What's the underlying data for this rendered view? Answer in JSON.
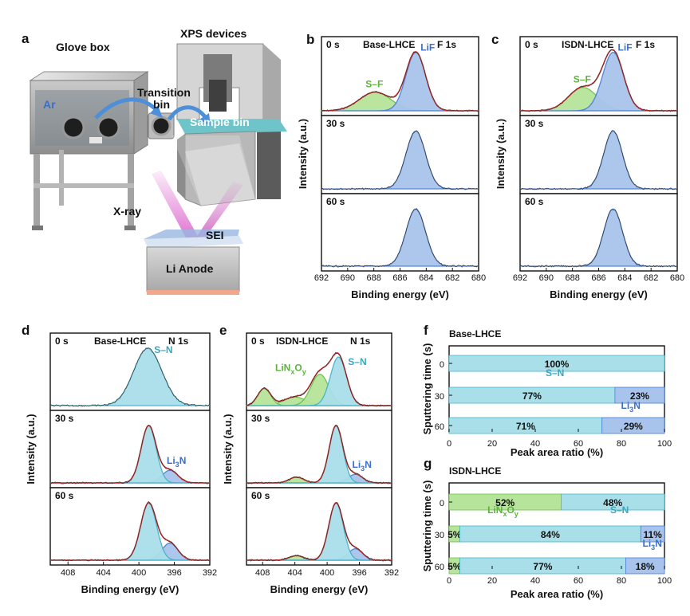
{
  "panels": {
    "a": "a",
    "b": "b",
    "c": "c",
    "d": "d",
    "e": "e",
    "f": "f",
    "g": "g"
  },
  "schematic": {
    "glove_box": "Glove box",
    "ar": "Ar",
    "transition_bin_1": "Transition",
    "transition_bin_2": "bin",
    "xps_devices": "XPS devices",
    "sample_bin": "Sample bin",
    "xray": "X-ray",
    "sei": "SEI",
    "li_anode": "Li Anode"
  },
  "colors": {
    "fill_blue": "#a8c4ec",
    "line_blue": "#4a7fd4",
    "fill_cyan": "#a9dfe9",
    "line_cyan": "#45b3c8",
    "fill_green": "#b6e49a",
    "line_green": "#6cc04a",
    "envelope_red": "#e0302f",
    "text_blue": "#3b6fc9",
    "text_cyan": "#3aa7bf",
    "text_green": "#5cb43a"
  },
  "chart_data": [
    {
      "id": "b",
      "type": "line",
      "title_sample": "Base-LHCE",
      "title_core": "F 1s",
      "xlabel": "Binding energy (eV)",
      "ylabel": "Intensity (a.u.)",
      "xlim": [
        692,
        680
      ],
      "xticks": [
        "692",
        "690",
        "688",
        "686",
        "684",
        "682",
        "680"
      ],
      "sub": [
        {
          "time": "0 s",
          "peaks": [
            {
              "label": "LiF",
              "center": 684.8,
              "width": 0.75,
              "height": 1.0,
              "color": "blue"
            },
            {
              "label": "S–F",
              "center": 687.9,
              "width": 1.2,
              "height": 0.32,
              "color": "green"
            }
          ]
        },
        {
          "time": "30 s",
          "peaks": [
            {
              "label": "",
              "center": 684.8,
              "width": 0.75,
              "height": 1.0,
              "color": "blue"
            }
          ]
        },
        {
          "time": "60 s",
          "peaks": [
            {
              "label": "",
              "center": 684.8,
              "width": 0.75,
              "height": 1.0,
              "color": "blue"
            }
          ]
        }
      ]
    },
    {
      "id": "c",
      "type": "line",
      "title_sample": "ISDN-LHCE",
      "title_core": "F 1s",
      "xlabel": "Binding energy (eV)",
      "ylabel": "Intensity (a.u.)",
      "xlim": [
        692,
        680
      ],
      "xticks": [
        "692",
        "690",
        "688",
        "686",
        "684",
        "682",
        "680"
      ],
      "sub": [
        {
          "time": "0 s",
          "peaks": [
            {
              "label": "LiF",
              "center": 684.9,
              "width": 0.8,
              "height": 1.0,
              "color": "blue"
            },
            {
              "label": "S–F",
              "center": 687.2,
              "width": 1.1,
              "height": 0.4,
              "color": "green"
            }
          ]
        },
        {
          "time": "30 s",
          "peaks": [
            {
              "label": "",
              "center": 684.9,
              "width": 0.72,
              "height": 1.0,
              "color": "blue"
            }
          ]
        },
        {
          "time": "60 s",
          "peaks": [
            {
              "label": "",
              "center": 684.9,
              "width": 0.72,
              "height": 1.0,
              "color": "blue"
            }
          ]
        }
      ]
    },
    {
      "id": "d",
      "type": "line",
      "title_sample": "Base-LHCE",
      "title_core": "N 1s",
      "xlabel": "Binding energy (eV)",
      "ylabel": "Intensity (a.u.)",
      "xlim": [
        410,
        392
      ],
      "xticks": [
        "408",
        "404",
        "400",
        "396",
        "392"
      ],
      "sub": [
        {
          "time": "0 s",
          "peaks": [
            {
              "label": "S–N",
              "center": 399.0,
              "width": 1.6,
              "height": 1.0,
              "color": "cyan"
            }
          ]
        },
        {
          "time": "30 s",
          "peaks": [
            {
              "label": "",
              "center": 398.9,
              "width": 0.85,
              "height": 1.0,
              "color": "cyan"
            },
            {
              "label": "Li3N",
              "center": 396.5,
              "width": 0.9,
              "height": 0.22,
              "color": "blue"
            }
          ]
        },
        {
          "time": "60 s",
          "peaks": [
            {
              "label": "",
              "center": 398.9,
              "width": 0.9,
              "height": 1.0,
              "color": "cyan"
            },
            {
              "label": "",
              "center": 396.5,
              "width": 0.9,
              "height": 0.3,
              "color": "blue"
            }
          ]
        }
      ]
    },
    {
      "id": "e",
      "type": "line",
      "title_sample": "ISDN-LHCE",
      "title_core": "N 1s",
      "xlabel": "Binding energy (eV)",
      "ylabel": "Intensity (a.u.)",
      "xlim": [
        410,
        392
      ],
      "xticks": [
        "408",
        "404",
        "400",
        "396",
        "392"
      ],
      "sub": [
        {
          "time": "0 s",
          "peaks": [
            {
              "label": "S–N",
              "center": 398.6,
              "width": 1.0,
              "height": 0.85,
              "color": "cyan"
            },
            {
              "label": "LiNxOy",
              "center": 400.9,
              "width": 1.1,
              "height": 0.55,
              "color": "green"
            },
            {
              "label": "",
              "center": 407.8,
              "width": 0.8,
              "height": 0.3,
              "color": "green"
            },
            {
              "label": "",
              "center": 404.0,
              "width": 1.4,
              "height": 0.15,
              "color": "green"
            }
          ]
        },
        {
          "time": "30 s",
          "peaks": [
            {
              "label": "",
              "center": 398.9,
              "width": 0.85,
              "height": 1.0,
              "color": "cyan"
            },
            {
              "label": "Li3N",
              "center": 396.5,
              "width": 0.9,
              "height": 0.15,
              "color": "blue"
            },
            {
              "label": "",
              "center": 403.8,
              "width": 0.9,
              "height": 0.1,
              "color": "green"
            }
          ]
        },
        {
          "time": "60 s",
          "peaks": [
            {
              "label": "",
              "center": 398.9,
              "width": 0.9,
              "height": 1.0,
              "color": "cyan"
            },
            {
              "label": "",
              "center": 396.5,
              "width": 0.9,
              "height": 0.2,
              "color": "blue"
            },
            {
              "label": "",
              "center": 403.8,
              "width": 0.9,
              "height": 0.08,
              "color": "green"
            }
          ]
        }
      ]
    },
    {
      "id": "f",
      "type": "bar",
      "orientation": "horizontal-stacked",
      "title": "Base-LHCE",
      "xlabel": "Peak area ratio (%)",
      "ylabel": "Sputtering time (s)",
      "xlim": [
        0,
        100
      ],
      "xticks": [
        "0",
        "20",
        "40",
        "60",
        "80",
        "100"
      ],
      "categories": [
        "0",
        "30",
        "60"
      ],
      "series": [
        {
          "name": "S–N",
          "color": "cyan",
          "values": [
            100,
            77,
            71
          ],
          "labels": [
            "100%",
            "77%",
            "71%"
          ]
        },
        {
          "name": "Li3N",
          "color": "blue",
          "values": [
            0,
            23,
            29
          ],
          "labels": [
            "",
            "23%",
            "29%"
          ]
        }
      ]
    },
    {
      "id": "g",
      "type": "bar",
      "orientation": "horizontal-stacked",
      "title": "ISDN-LHCE",
      "xlabel": "Peak area ratio (%)",
      "ylabel": "Sputtering time (s)",
      "xlim": [
        0,
        100
      ],
      "xticks": [
        "0",
        "20",
        "40",
        "60",
        "80",
        "100"
      ],
      "categories": [
        "0",
        "30",
        "60"
      ],
      "series": [
        {
          "name": "LiNxOy",
          "color": "green",
          "values": [
            52,
            5,
            5
          ],
          "labels": [
            "52%",
            "5%",
            "5%"
          ]
        },
        {
          "name": "S–N",
          "color": "cyan",
          "values": [
            48,
            84,
            77
          ],
          "labels": [
            "48%",
            "84%",
            "77%"
          ]
        },
        {
          "name": "Li3N",
          "color": "blue",
          "values": [
            0,
            11,
            18
          ],
          "labels": [
            "",
            "11%",
            "18%"
          ]
        }
      ]
    }
  ]
}
